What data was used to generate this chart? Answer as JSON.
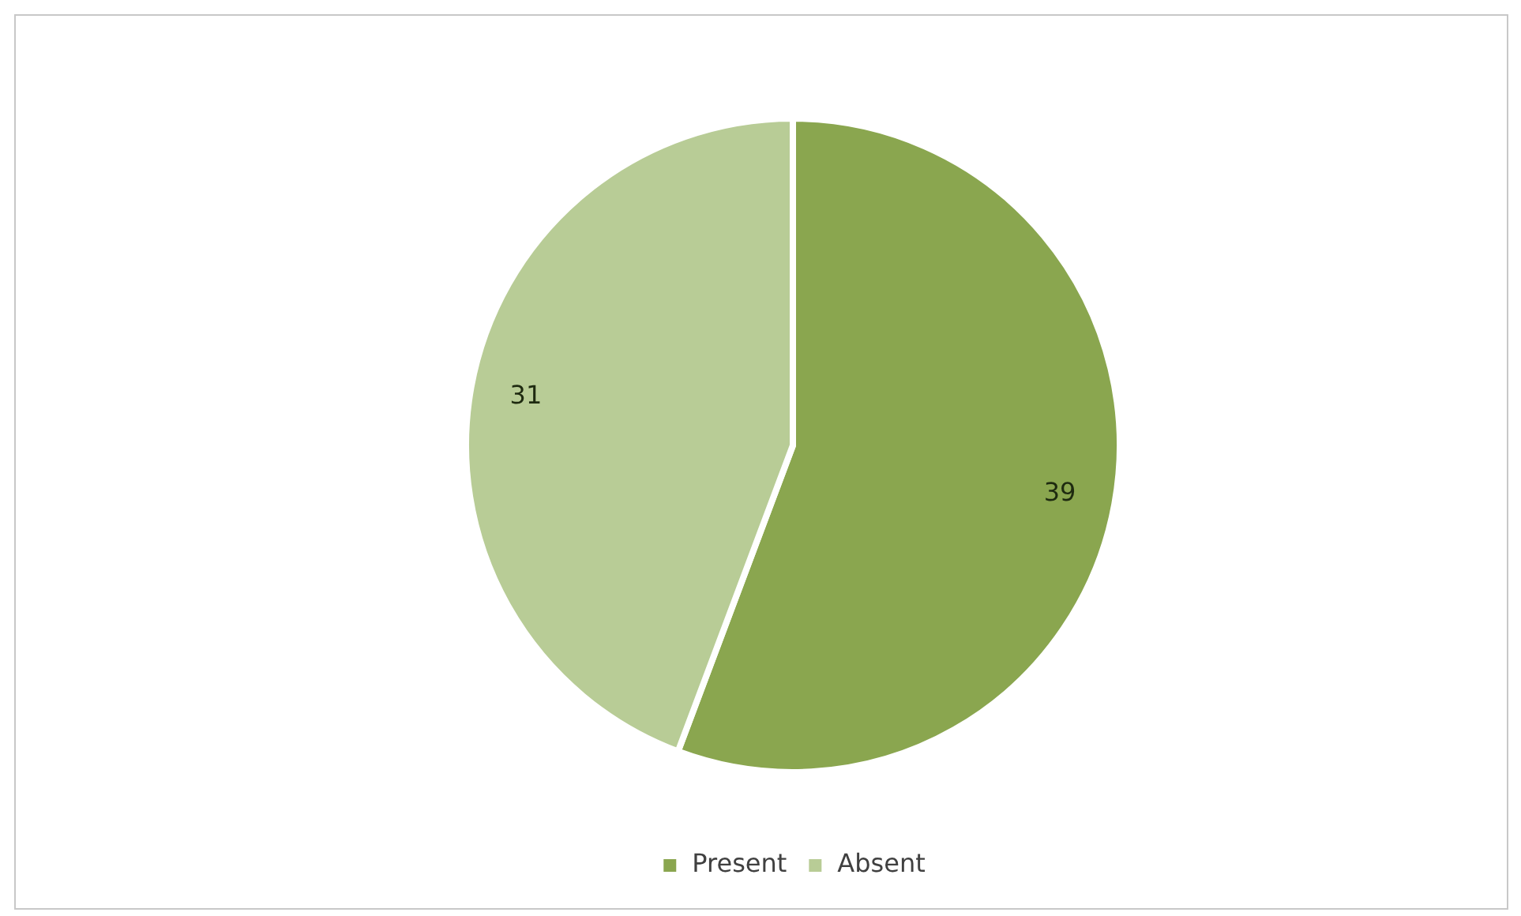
{
  "chart_data": {
    "type": "pie",
    "categories": [
      "Present",
      "Absent"
    ],
    "values": [
      39,
      31
    ],
    "colors": [
      "#8aa64f",
      "#b8cc96"
    ],
    "data_labels": true,
    "legend": "bottom"
  }
}
